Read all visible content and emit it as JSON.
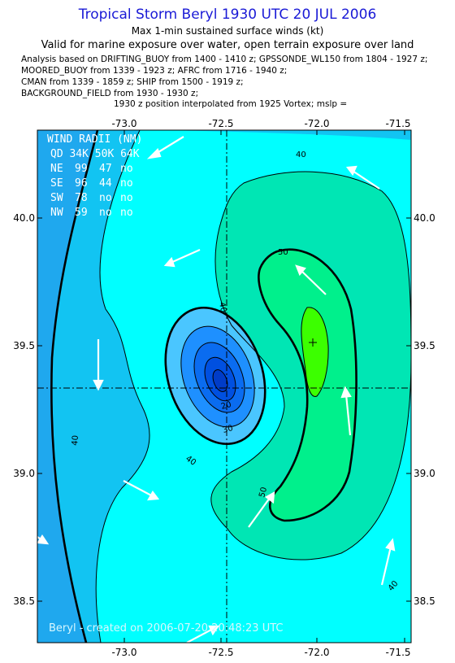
{
  "header": {
    "title": "Tropical Storm Beryl 1930 UTC 20 JUL 2006",
    "subtitle1": "Max 1-min sustained surface winds (kt)",
    "subtitle2": "Valid for marine exposure over water, open terrain exposure over land",
    "analysis_lines": [
      "Analysis based on  DRIFTING_BUOY from 1400 - 1410 z;  GPSSONDE_WL150 from 1804 - 1927 z;",
      "MOORED_BUOY from 1339 - 1923 z;  AFRC from 1716 - 1940 z;",
      "CMAN from 1339 - 1859 z;  SHIP from 1500 - 1919 z;",
      "BACKGROUND_FIELD from 1930 - 1930 z;"
    ],
    "interp_line": "1930 z position interpolated from 1925 Vortex; mslp ="
  },
  "map": {
    "x_ticks": [
      "-73.0",
      "-72.5",
      "-72.0",
      "-71.5"
    ],
    "y_ticks": [
      "40.0",
      "39.5",
      "39.0",
      "38.5"
    ],
    "lon_range": [
      -73.42,
      -71.47
    ],
    "lat_range": [
      38.33,
      40.38
    ],
    "center": {
      "lon": -72.43,
      "lat": 39.33
    },
    "max_wind_point": {
      "lon": -71.96,
      "lat": 39.51
    },
    "contour_labels": [
      "40",
      "40",
      "40",
      "40",
      "50",
      "50",
      "40",
      "30",
      "20"
    ],
    "footer": "Beryl - created on 2006-07-20 20:48:23 UTC",
    "colors": {
      "outer": "#1fa8ee",
      "mid": "#12c4f2",
      "cyan": "#00ffff",
      "teal": "#00e6b4",
      "green_light": "#00f08c",
      "green": "#3cff00",
      "core1": "#1e90ff",
      "core2": "#0a6cf0",
      "core3": "#0050e0",
      "core4": "#003cc8"
    }
  },
  "wind_radii": {
    "title": "WIND RADII (NM)",
    "header": "QD 34K 50K 64K",
    "rows": [
      {
        "q": "NE",
        "r34": "99",
        "r50": "47",
        "r64": "no"
      },
      {
        "q": "SE",
        "r34": "96",
        "r50": "44",
        "r64": "no"
      },
      {
        "q": "SW",
        "r34": "78",
        "r50": "no",
        "r64": "no"
      },
      {
        "q": "NW",
        "r34": "59",
        "r50": "no",
        "r64": "no"
      }
    ]
  }
}
